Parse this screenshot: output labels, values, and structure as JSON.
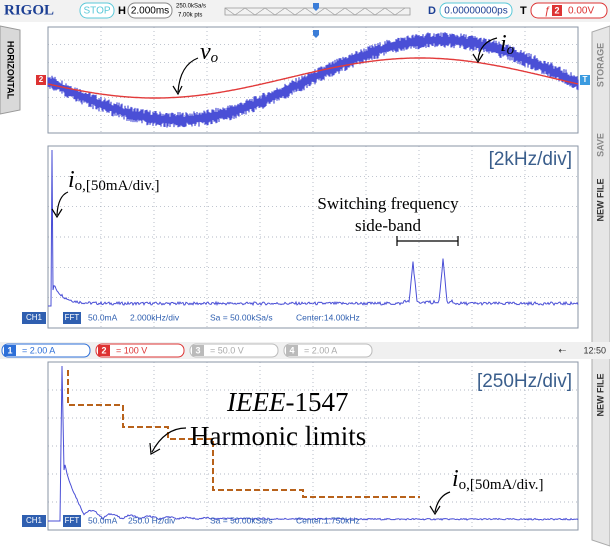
{
  "top_bar": {
    "brand": "RIGOL",
    "status": "STOP",
    "h_label": "H",
    "timebase": "2.000ms",
    "sample_rate": "250.0kSa/s",
    "points": "7.00k pts",
    "d_label": "D",
    "delay": "0.00000000ps",
    "t_label": "T",
    "trig_channel": "2",
    "trig_level": "0.00V"
  },
  "side_tabs": {
    "left": "HORIZONTAL",
    "right_1": "STORAGE",
    "right_2": "SAVE",
    "right_3": "NEW FILE",
    "right_4": "NEW FILE"
  },
  "waveform_panel": {
    "ch2_marker": "2",
    "trig_marker": "T",
    "vo_main": "v",
    "vo_sub": "o",
    "io_main": "i",
    "io_sub": "o"
  },
  "fft_panel_1": {
    "scale": "[2kHz/div]",
    "io_main": "i",
    "io_sub": "o,[50mA/div.]",
    "note_line_1": "Switching frequency",
    "note_line_2": "side-band",
    "ch": "CH1",
    "fft": "FFT",
    "amp": "50.0mA",
    "span": "2.000kHz/div",
    "sa": "Sa = 50.00kSa/s",
    "center": "Center:14.00kHz"
  },
  "channel_bar": {
    "channels": [
      {
        "num": "1",
        "setting": "= 2.00 A"
      },
      {
        "num": "2",
        "setting": "= 100 V"
      },
      {
        "num": "3",
        "setting": "= 50.0 V"
      },
      {
        "num": "4",
        "setting": "= 2.00 A"
      }
    ],
    "time": "12:50"
  },
  "fft_panel_2": {
    "scale": "[250Hz/div]",
    "standard": "IEEE",
    "standard_num": "-1547",
    "limits": "Harmonic limits",
    "io_main": "i",
    "io_sub": "o,[50mA/div.]",
    "ch": "CH1",
    "fft": "FFT",
    "amp": "50.0mA",
    "span": "250.0 Hz/div",
    "sa": "Sa = 50.00kSa/s",
    "center": "Center:1.750kHz"
  }
}
